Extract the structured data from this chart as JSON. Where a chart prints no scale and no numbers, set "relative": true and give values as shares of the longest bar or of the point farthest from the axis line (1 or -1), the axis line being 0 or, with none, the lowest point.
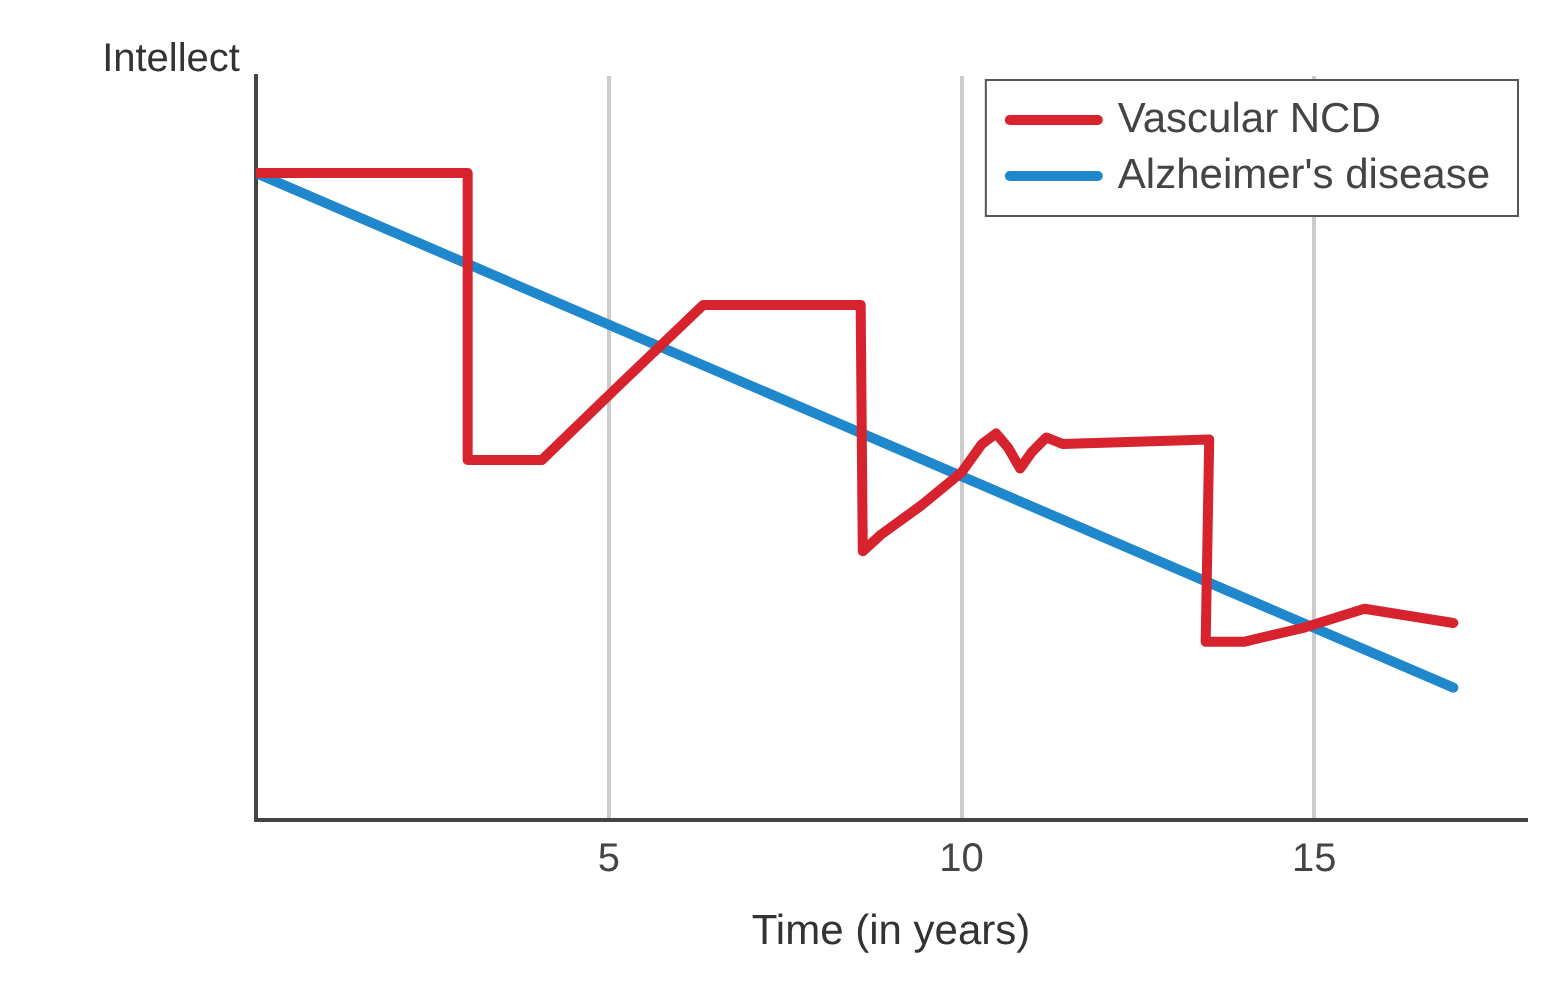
{
  "chart_data": {
    "type": "line",
    "xlabel": "Time (in years)",
    "ylabel": "Intellect",
    "relative": true,
    "xlim": [
      0,
      18
    ],
    "xticks": [
      5,
      10,
      15
    ],
    "grid": "x",
    "legend": "top right",
    "marker": "none",
    "line_style": "solid",
    "series": [
      {
        "name": "Vascular NCD",
        "color": "#d7232e",
        "x": [
          0,
          3,
          3,
          4.05,
          5.14,
          6.34,
          8.57,
          8.6,
          8.86,
          9.43,
          10,
          10.29,
          10.49,
          10.66,
          10.83,
          11,
          11.2,
          11.43,
          13.51,
          13.46,
          14,
          14.86,
          15.71,
          16.97
        ],
        "values": [
          1,
          1,
          0.556,
          0.556,
          0.671,
          0.796,
          0.796,
          0.415,
          0.441,
          0.486,
          0.537,
          0.581,
          0.597,
          0.575,
          0.543,
          0.569,
          0.591,
          0.581,
          0.588,
          0.275,
          0.275,
          0.297,
          0.326,
          0.304
        ]
      },
      {
        "name": "Alzheimer's disease",
        "color": "#1f87cc",
        "x": [
          0,
          16.97
        ],
        "values": [
          1,
          0.204
        ]
      }
    ]
  }
}
